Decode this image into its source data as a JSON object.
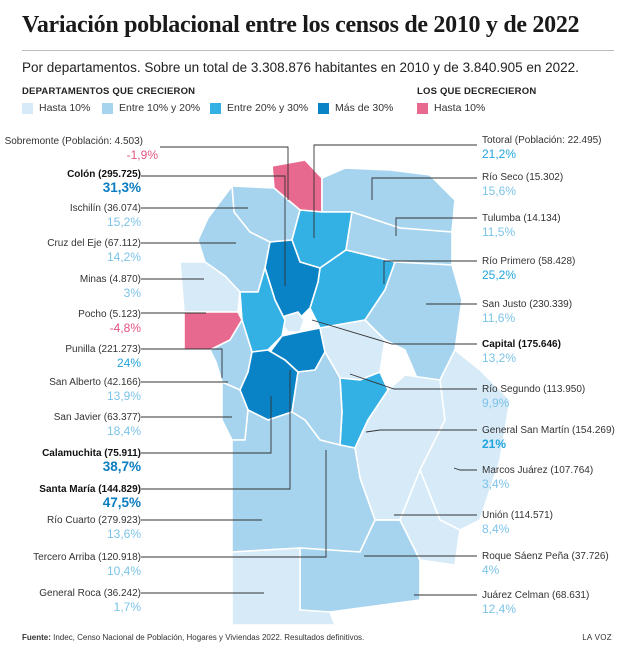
{
  "title": "Variación poblacional entre los censos de 2010 y de 2022",
  "subtitle": "Por departamentos. Sobre un total de 3.308.876 habitantes en 2010 y de 3.840.905 en 2022.",
  "legend": {
    "grew_heading": "DEPARTAMENTOS QUE CRECIERON",
    "shrank_heading": "LOS QUE DECRECIERON",
    "items": [
      {
        "label": "Hasta 10%",
        "color": "#d6eaf8"
      },
      {
        "label": "Entre 10% y 20%",
        "color": "#a6d3ee"
      },
      {
        "label": "Entre 20% y 30%",
        "color": "#33b0e4"
      },
      {
        "label": "Más de 30%",
        "color": "#0a83c6"
      },
      {
        "label": "Hasta 10%",
        "color": "#e8698f"
      }
    ]
  },
  "colors": {
    "neg": "#e2547f",
    "c1": "#7cc3e8",
    "c2": "#7cc3e8",
    "c3": "#22a5dd",
    "c4": "#0a7cc0"
  },
  "departments_left": [
    {
      "name": "Sobremonte (Población: 4.503)",
      "value": "-1,9%",
      "class": "neg"
    },
    {
      "name": "Colón (295.725)",
      "value": "31,3%",
      "class": "c4",
      "bold": true
    },
    {
      "name": "Ischilín (36.074)",
      "value": "15,2%",
      "class": "c2"
    },
    {
      "name": "Cruz del Eje (67.112)",
      "value": "14,2%",
      "class": "c2"
    },
    {
      "name": "Minas (4.870)",
      "value": "3%",
      "class": "c1"
    },
    {
      "name": "Pocho (5.123)",
      "value": "-4,8%",
      "class": "neg"
    },
    {
      "name": "Punilla (221.273)",
      "value": "24%",
      "class": "c3"
    },
    {
      "name": "San Alberto (42.166)",
      "value": "13,9%",
      "class": "c2"
    },
    {
      "name": "San Javier (63.377)",
      "value": "18,4%",
      "class": "c2"
    },
    {
      "name": "Calamuchita (75.911)",
      "value": "38,7%",
      "class": "c4",
      "bold": true
    },
    {
      "name": "Santa María (144.829)",
      "value": "47,5%",
      "class": "c4",
      "bold": true
    },
    {
      "name": "Río Cuarto (279.923)",
      "value": "13,6%",
      "class": "c2"
    },
    {
      "name": "Tercero Arriba (120.918)",
      "value": "10,4%",
      "class": "c2"
    },
    {
      "name": "General Roca (36.242)",
      "value": "1,7%",
      "class": "c1"
    }
  ],
  "departments_right": [
    {
      "name": "Totoral (Población: 22.495)",
      "value": "21,2%",
      "class": "c3"
    },
    {
      "name": "Río Seco (15.302)",
      "value": "15,6%",
      "class": "c2"
    },
    {
      "name": "Tulumba (14.134)",
      "value": "11,5%",
      "class": "c2"
    },
    {
      "name": "Río Primero (58.428)",
      "value": "25,2%",
      "class": "c3"
    },
    {
      "name": "San Justo (230.339)",
      "value": "11,6%",
      "class": "c2"
    },
    {
      "name": "Capital (175.646)",
      "value": "13,2%",
      "class": "c2",
      "bold": true
    },
    {
      "name": "Río Segundo (113.950)",
      "value": "9,9%",
      "class": "c1"
    },
    {
      "name": "General San Martín (154.269)",
      "value": "21%",
      "class": "c3"
    },
    {
      "name": "Marcos Juárez (107.764)",
      "value": "3,4%",
      "class": "c1"
    },
    {
      "name": "Unión (114.571)",
      "value": "8,4%",
      "class": "c1"
    },
    {
      "name": "Roque Sáenz Peña (37.726)",
      "value": "4%",
      "class": "c1"
    },
    {
      "name": "Juárez Celman (68.631)",
      "value": "12,4%",
      "class": "c2"
    }
  ],
  "footer": {
    "label": "Fuente:",
    "text": " Indec, Censo Nacional de Población, Hogares y Viviendas 2022. Resultados definitivos.",
    "brand": "LA VOZ"
  }
}
